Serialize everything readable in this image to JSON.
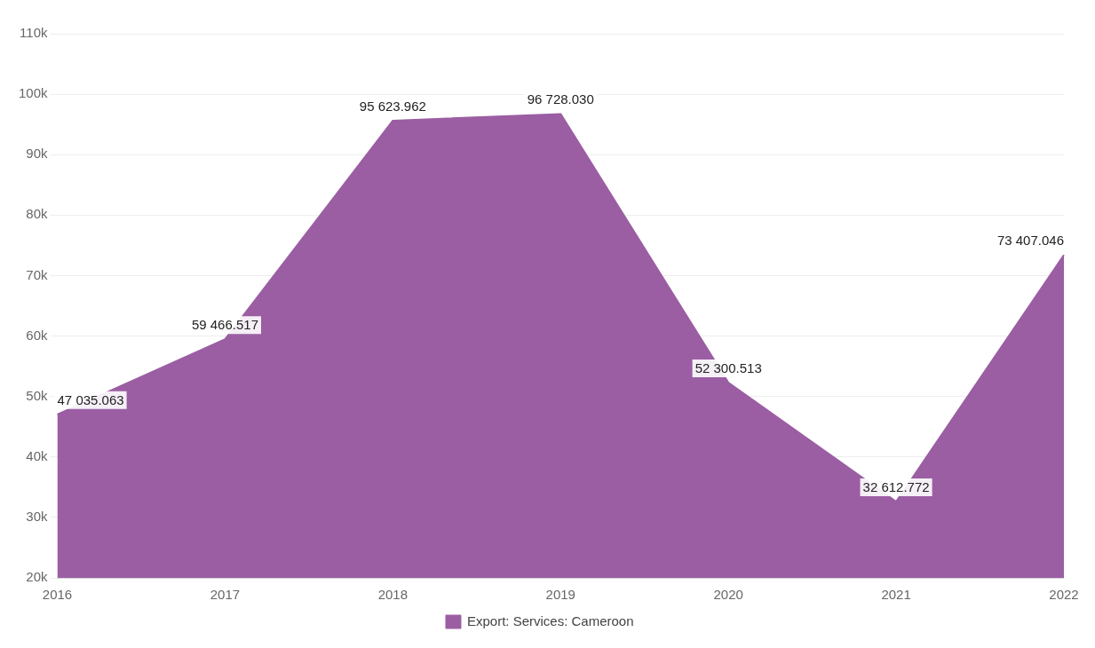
{
  "chart_data": {
    "type": "area",
    "categories": [
      "2016",
      "2017",
      "2018",
      "2019",
      "2020",
      "2021",
      "2022"
    ],
    "series": [
      {
        "name": "Export: Services: Cameroon",
        "color": "#9b5ea3",
        "values": [
          47035.063,
          59466.517,
          95623.962,
          96728.03,
          52300.513,
          32612.772,
          73407.046
        ],
        "value_labels": [
          "47 035.063",
          "59 466.517",
          "95 623.962",
          "96 728.030",
          "52 300.513",
          "32 612.772",
          "73 407.046"
        ]
      }
    ],
    "ylim": [
      20000,
      110000
    ],
    "yticks": [
      {
        "value": 20000,
        "label": "20k"
      },
      {
        "value": 30000,
        "label": "30k"
      },
      {
        "value": 40000,
        "label": "40k"
      },
      {
        "value": 50000,
        "label": "50k"
      },
      {
        "value": 60000,
        "label": "60k"
      },
      {
        "value": 70000,
        "label": "70k"
      },
      {
        "value": 80000,
        "label": "80k"
      },
      {
        "value": 90000,
        "label": "90k"
      },
      {
        "value": 100000,
        "label": "100k"
      },
      {
        "value": 110000,
        "label": "110k"
      }
    ],
    "grid": "y",
    "legend": "bottom",
    "marker": "none"
  }
}
